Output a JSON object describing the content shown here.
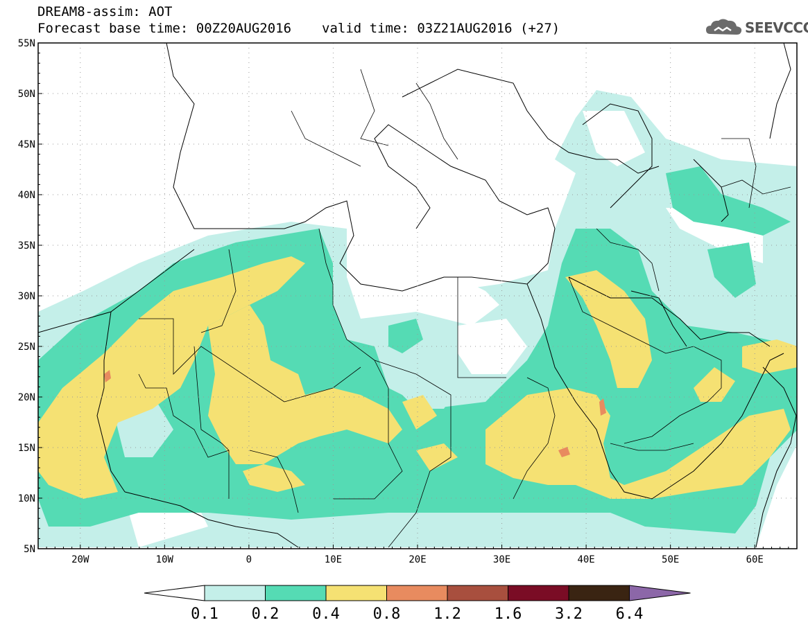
{
  "title": {
    "line1": "DREAM8-assim: AOT",
    "base_time": "Forecast base time: 00Z20AUG2016",
    "valid_time": "valid time: 03Z21AUG2016 (+27)"
  },
  "logo": {
    "text": "SEEVCCC",
    "icon": "cloud-icon"
  },
  "map": {
    "lat_labels": [
      "55N",
      "50N",
      "45N",
      "40N",
      "35N",
      "30N",
      "25N",
      "20N",
      "15N",
      "10N",
      "5N"
    ],
    "lat_values": [
      55,
      50,
      45,
      40,
      35,
      30,
      25,
      20,
      15,
      10,
      5
    ],
    "lon_labels": [
      "20W",
      "10W",
      "0",
      "10E",
      "20E",
      "30E",
      "40E",
      "50E",
      "60E"
    ],
    "lon_values": [
      -20,
      -10,
      0,
      10,
      20,
      30,
      40,
      50,
      60
    ],
    "lon_range": [
      -25,
      65
    ],
    "lat_range": [
      5,
      55
    ]
  },
  "colorbar": {
    "labels": [
      "0.1",
      "0.2",
      "0.4",
      "0.8",
      "1.2",
      "1.6",
      "3.2",
      "6.4"
    ],
    "colors": [
      "#ffffff",
      "#c4efe9",
      "#55dbb4",
      "#f5e173",
      "#e88b5f",
      "#a84f3e",
      "#7a0c25",
      "#3a2412",
      "#8c67a8"
    ]
  }
}
